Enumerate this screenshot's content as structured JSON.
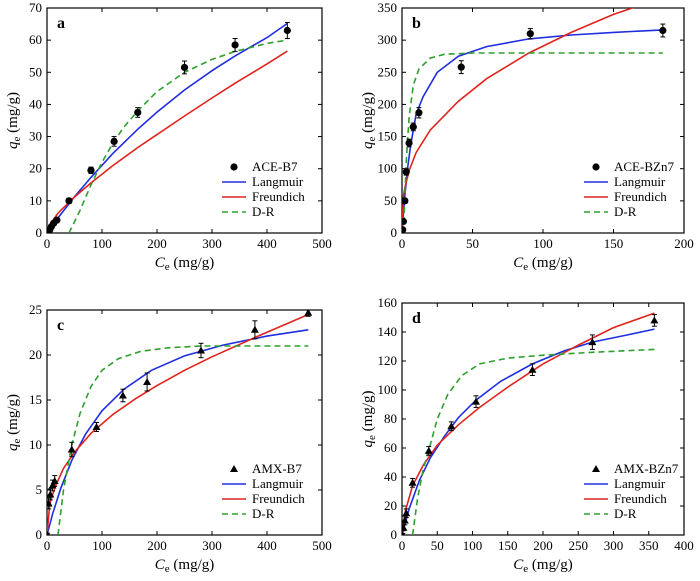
{
  "chart_data": [
    {
      "panel": "a",
      "type": "scatter",
      "xlabel": "C_e (mg/g)",
      "ylabel": "q_e (mg/g)",
      "xlim": [
        0,
        500
      ],
      "ylim": [
        0,
        70
      ],
      "xticks": [
        0,
        100,
        200,
        300,
        400,
        500
      ],
      "yticks": [
        0,
        10,
        20,
        30,
        40,
        50,
        60,
        70
      ],
      "marker": "circle",
      "legend_position": "bottom-right",
      "legend": [
        "ACE-B7",
        "Langmuir",
        "Freundich",
        "D-R"
      ],
      "series": [
        {
          "name": "ACE-B7",
          "kind": "points",
          "color": "#000000",
          "x": [
            2,
            5,
            8,
            12,
            18,
            40,
            80,
            122,
            165,
            250,
            342,
            437
          ],
          "y": [
            0.5,
            1,
            2,
            3,
            4,
            10,
            19.5,
            28.5,
            37.5,
            51.5,
            58.5,
            63
          ],
          "err": [
            0.5,
            0.5,
            0.5,
            0.5,
            0.5,
            0.8,
            1.0,
            1.5,
            1.5,
            2.0,
            2.0,
            2.5
          ]
        },
        {
          "name": "Langmuir",
          "kind": "line",
          "color": "#1f2ee0",
          "x": [
            0,
            20,
            50,
            80,
            120,
            165,
            200,
            250,
            300,
            342,
            400,
            437
          ],
          "y": [
            0,
            4.7,
            11.3,
            17.3,
            24.8,
            32.3,
            37.6,
            44.5,
            50.5,
            55.1,
            60.8,
            65.2
          ]
        },
        {
          "name": "Freundich",
          "kind": "line",
          "color": "#e0241d",
          "x": [
            0,
            5,
            20,
            50,
            80,
            120,
            165,
            200,
            250,
            300,
            342,
            400,
            437
          ],
          "y": [
            0,
            2.6,
            6.2,
            11.2,
            15.6,
            21,
            26.6,
            30.6,
            36.4,
            42,
            46.6,
            52.6,
            56.6
          ]
        },
        {
          "name": "D-R",
          "kind": "line",
          "dash": true,
          "color": "#2ea02e",
          "x": [
            40,
            60,
            80,
            100,
            120,
            140,
            165,
            200,
            250,
            300,
            342,
            400,
            437
          ],
          "y": [
            0,
            7,
            15,
            22,
            28,
            33,
            38,
            44,
            50,
            54,
            56.5,
            59,
            60
          ]
        }
      ]
    },
    {
      "panel": "b",
      "type": "scatter",
      "xlabel": "C_e (mg/g)",
      "ylabel": "q_e (mg/g)",
      "xlim": [
        0,
        200
      ],
      "ylim": [
        0,
        350
      ],
      "xticks": [
        0,
        50,
        100,
        150,
        200
      ],
      "yticks": [
        0,
        50,
        100,
        150,
        200,
        250,
        300,
        350
      ],
      "marker": "circle",
      "legend_position": "bottom-right",
      "legend": [
        "ACE-BZn7",
        "Langmuir",
        "Freundich",
        "D-R"
      ],
      "series": [
        {
          "name": "ACE-BZn7",
          "kind": "points",
          "color": "#000000",
          "x": [
            0.5,
            1,
            2,
            3,
            5,
            8,
            12,
            42,
            91,
            185
          ],
          "y": [
            5,
            18,
            50,
            95,
            140,
            165,
            187,
            258,
            310,
            315
          ],
          "err": [
            2,
            3,
            4,
            5,
            6,
            6,
            8,
            10,
            8,
            10
          ]
        },
        {
          "name": "Langmuir",
          "kind": "line",
          "color": "#1f2ee0",
          "x": [
            0,
            1,
            2,
            4,
            6,
            10,
            15,
            25,
            40,
            60,
            90,
            120,
            150,
            185
          ],
          "y": [
            0,
            30,
            57,
            101,
            135,
            185,
            212,
            250,
            275,
            290,
            302,
            308,
            312,
            316
          ]
        },
        {
          "name": "Freundich",
          "kind": "line",
          "color": "#e0241d",
          "x": [
            0,
            1,
            2,
            5,
            10,
            20,
            40,
            60,
            90,
            120,
            150,
            170
          ],
          "y": [
            0,
            57,
            70,
            97,
            125,
            160,
            205,
            240,
            280,
            312,
            340,
            355
          ]
        },
        {
          "name": "D-R",
          "kind": "line",
          "dash": true,
          "color": "#2ea02e",
          "x": [
            1,
            3,
            5,
            8,
            12,
            20,
            30,
            50,
            100,
            185
          ],
          "y": [
            0,
            110,
            180,
            230,
            255,
            272,
            278,
            280,
            280,
            280
          ]
        }
      ]
    },
    {
      "panel": "c",
      "type": "scatter",
      "xlabel": "C_e (mg/g)",
      "ylabel": "q_e (mg/g)",
      "xlim": [
        0,
        500
      ],
      "ylim": [
        0,
        25
      ],
      "xticks": [
        0,
        100,
        200,
        300,
        400,
        500
      ],
      "yticks": [
        0,
        5,
        10,
        15,
        20,
        25
      ],
      "marker": "triangle",
      "legend_position": "bottom-right",
      "legend": [
        "AMX-B7",
        "Langmuir",
        "Freundich",
        "D-R"
      ],
      "series": [
        {
          "name": "AMX-B7",
          "kind": "points",
          "color": "#000000",
          "x": [
            1,
            3,
            6,
            10,
            14,
            45,
            90,
            138,
            182,
            280,
            378,
            475
          ],
          "y": [
            0,
            3.5,
            4.5,
            5.5,
            6,
            9.5,
            12,
            15.5,
            17,
            20.5,
            22.8,
            24.7
          ],
          "err": [
            0.2,
            0.6,
            0.6,
            0.6,
            0.6,
            0.8,
            0.5,
            0.7,
            1.0,
            0.8,
            1.0,
            0.4
          ]
        },
        {
          "name": "Langmuir",
          "kind": "line",
          "color": "#1f2ee0",
          "x": [
            0,
            10,
            25,
            45,
            70,
            100,
            140,
            190,
            250,
            320,
            400,
            475
          ],
          "y": [
            0,
            2.3,
            5.2,
            8.3,
            11.2,
            13.8,
            16.2,
            18.3,
            19.9,
            21.1,
            22.1,
            22.8
          ]
        },
        {
          "name": "Freundich",
          "kind": "line",
          "color": "#e0241d",
          "x": [
            0,
            5,
            15,
            30,
            50,
            80,
            120,
            160,
            200,
            250,
            300,
            380,
            475
          ],
          "y": [
            0,
            3.5,
            5.4,
            7.4,
            9.2,
            11.3,
            13.4,
            15.1,
            16.6,
            18.3,
            19.8,
            22,
            24.5
          ]
        },
        {
          "name": "D-R",
          "kind": "line",
          "dash": true,
          "color": "#2ea02e",
          "x": [
            20,
            30,
            45,
            60,
            80,
            100,
            130,
            170,
            220,
            280,
            380,
            475
          ],
          "y": [
            0,
            5,
            10,
            13.5,
            16.5,
            18.3,
            19.6,
            20.4,
            20.8,
            21,
            21,
            21
          ]
        }
      ]
    },
    {
      "panel": "d",
      "type": "scatter",
      "xlabel": "C_e (mg/g)",
      "ylabel": "q_e (mg/g)",
      "xlim": [
        0,
        400
      ],
      "ylim": [
        0,
        160
      ],
      "xticks": [
        0,
        50,
        100,
        150,
        200,
        250,
        300,
        350,
        400
      ],
      "yticks": [
        0,
        20,
        40,
        60,
        80,
        100,
        120,
        140,
        160
      ],
      "marker": "triangle",
      "legend_position": "bottom-right",
      "legend": [
        "AMX-BZn7",
        "Langmuir",
        "Freundich",
        "D-R"
      ],
      "series": [
        {
          "name": "AMX-BZn7",
          "kind": "points",
          "color": "#000000",
          "x": [
            1,
            2,
            4,
            6,
            15,
            38,
            70,
            105,
            185,
            270,
            358
          ],
          "y": [
            0,
            5,
            10,
            15,
            36,
            58,
            75,
            92,
            114,
            133,
            148
          ],
          "err": [
            1,
            2,
            3,
            3,
            3,
            3,
            3,
            4,
            4,
            5,
            4
          ]
        },
        {
          "name": "Langmuir",
          "kind": "line",
          "color": "#1f2ee0",
          "x": [
            0,
            10,
            25,
            40,
            60,
            80,
            105,
            140,
            185,
            230,
            270,
            320,
            358
          ],
          "y": [
            0,
            18,
            38,
            53,
            68,
            81,
            93,
            106,
            118,
            127,
            133,
            138,
            142
          ]
        },
        {
          "name": "Freundich",
          "kind": "line",
          "color": "#e0241d",
          "x": [
            0,
            5,
            15,
            30,
            50,
            80,
            110,
            150,
            200,
            250,
            300,
            358
          ],
          "y": [
            0,
            17,
            34,
            48,
            62,
            76,
            88,
            102,
            118,
            131,
            143,
            153
          ]
        },
        {
          "name": "D-R",
          "kind": "line",
          "dash": true,
          "color": "#2ea02e",
          "x": [
            15,
            22,
            30,
            40,
            50,
            65,
            85,
            110,
            150,
            200,
            270,
            358
          ],
          "y": [
            0,
            25,
            45,
            62,
            80,
            97,
            110,
            118,
            122,
            124,
            126,
            128
          ]
        }
      ]
    }
  ]
}
